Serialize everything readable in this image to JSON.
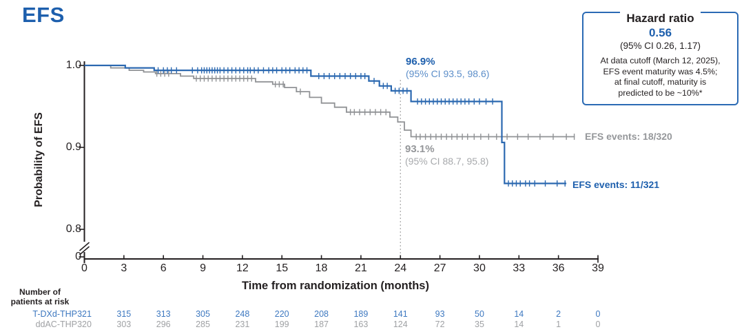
{
  "title": "EFS",
  "colors": {
    "title_blue": "#1d5fad",
    "curve_blue": "#2b68b0",
    "ci_text_blue": "#5c8ec9",
    "curve_gray": "#909295",
    "gray_bold_text": "#95979a",
    "ci_text_gray": "#a7a9ac",
    "risk_blue": "#3d78c0",
    "risk_gray": "#9fa1a4",
    "axis_black": "#231f20",
    "dotted_line": "#a6a6a6",
    "box_border_blue": "#2a6ab4"
  },
  "hazard_box": {
    "title": "Hazard ratio",
    "value": "0.56",
    "ci": "(95% CI 0.26, 1.17)",
    "note_lines": [
      "At data cutoff (March 12, 2025),",
      "EFS event maturity was 4.5%;",
      "at final cutoff, maturity is",
      "predicted to be ~10%*"
    ]
  },
  "annotations": {
    "tdxd_landmark_pct": "96.9%",
    "tdxd_landmark_ci": "(95% CI 93.5, 98.6)",
    "ddac_landmark_pct": "93.1%",
    "ddac_landmark_ci": "(95% CI 88.7, 95.8)",
    "tdxd_events": "EFS events: 11/321",
    "ddac_events": "EFS events: 18/320"
  },
  "axes": {
    "x": {
      "label": "Time from randomization (months)",
      "min": 0,
      "max": 39,
      "ticks": [
        0,
        3,
        6,
        9,
        12,
        15,
        18,
        21,
        24,
        27,
        30,
        33,
        36,
        39
      ]
    },
    "y": {
      "label": "Probability of EFS",
      "tick_labels": [
        "1.0",
        "0.9",
        "0.8",
        "0"
      ],
      "axis_break": true
    }
  },
  "chart_data": {
    "type": "line",
    "subtype": "kaplan-meier-step",
    "title": "EFS",
    "xlabel": "Time from randomization (months)",
    "ylabel": "Probability of EFS",
    "xlim": [
      0,
      39
    ],
    "ylim_displayed": [
      0.8,
      1.0
    ],
    "y_axis_break_to_zero": true,
    "landmark_month": 24,
    "grid": false,
    "series": [
      {
        "name": "T-DXd-THP",
        "color": "#2b68b0",
        "events": "11/321",
        "landmark_24mo": "96.9% (95% CI 93.5, 98.6)",
        "end_month": 36.6,
        "steps": [
          [
            0,
            1.0
          ],
          [
            3.1,
            0.997
          ],
          [
            5.3,
            0.994
          ],
          [
            17.2,
            0.987
          ],
          [
            21.6,
            0.981
          ],
          [
            22.4,
            0.975
          ],
          [
            23.3,
            0.969
          ],
          [
            24.8,
            0.956
          ],
          [
            31.7,
            0.906
          ],
          [
            31.9,
            0.856
          ]
        ],
        "censor_months": [
          5.6,
          6.0,
          6.3,
          6.6,
          7.0,
          8.2,
          8.6,
          8.9,
          9.1,
          9.3,
          9.5,
          9.7,
          9.9,
          10.1,
          10.3,
          10.6,
          10.9,
          11.2,
          11.5,
          11.8,
          12.1,
          12.4,
          12.6,
          12.9,
          13.2,
          13.6,
          14.0,
          14.3,
          14.6,
          15.0,
          15.3,
          15.6,
          16.0,
          16.3,
          16.6,
          16.9,
          17.8,
          18.2,
          18.6,
          19.0,
          19.4,
          19.8,
          20.2,
          20.6,
          21.0,
          21.3,
          22.0,
          22.7,
          23.0,
          23.6,
          23.9,
          24.2,
          24.5,
          25.3,
          25.6,
          25.9,
          26.2,
          26.5,
          26.8,
          27.1,
          27.4,
          27.7,
          28.0,
          28.3,
          28.6,
          28.9,
          29.2,
          29.6,
          30.0,
          30.5,
          31.0,
          32.2,
          32.5,
          32.8,
          33.1,
          33.5,
          33.8,
          34.2,
          35.0,
          35.9,
          36.5
        ]
      },
      {
        "name": "ddAC-THP",
        "color": "#909295",
        "events": "18/320",
        "landmark_24mo": "93.1% (95% CI 88.7, 95.8)",
        "end_month": 37.25,
        "steps": [
          [
            0,
            1.0
          ],
          [
            2.0,
            0.997
          ],
          [
            3.4,
            0.994
          ],
          [
            4.5,
            0.992
          ],
          [
            5.4,
            0.99
          ],
          [
            7.3,
            0.987
          ],
          [
            8.3,
            0.984
          ],
          [
            13.0,
            0.98
          ],
          [
            14.3,
            0.977
          ],
          [
            15.2,
            0.973
          ],
          [
            16.1,
            0.968
          ],
          [
            17.1,
            0.961
          ],
          [
            18.0,
            0.954
          ],
          [
            19.0,
            0.949
          ],
          [
            19.9,
            0.943
          ],
          [
            23.2,
            0.937
          ],
          [
            23.8,
            0.931
          ],
          [
            24.3,
            0.921
          ],
          [
            24.8,
            0.913
          ]
        ],
        "censor_months": [
          5.5,
          5.8,
          6.1,
          6.4,
          8.5,
          8.8,
          9.1,
          9.4,
          9.7,
          10.0,
          10.3,
          10.6,
          10.9,
          11.2,
          11.5,
          11.8,
          12.1,
          12.4,
          12.7,
          14.5,
          14.8,
          15.1,
          16.4,
          20.2,
          20.5,
          20.9,
          21.3,
          21.7,
          22.1,
          22.5,
          22.9,
          25.2,
          25.5,
          25.9,
          26.3,
          26.7,
          27.1,
          27.5,
          27.9,
          28.3,
          28.7,
          29.1,
          29.6,
          30.1,
          30.7,
          31.3,
          32.1,
          32.9,
          33.7,
          34.6,
          35.6,
          36.6,
          37.2
        ]
      }
    ]
  },
  "risk_table": {
    "header_lines": [
      "Number of",
      "patients at risk"
    ],
    "timepoints": [
      0,
      3,
      6,
      9,
      12,
      15,
      18,
      21,
      24,
      27,
      30,
      33,
      36,
      39
    ],
    "rows": [
      {
        "name": "T-DXd-THP",
        "values": [
          321,
          315,
          313,
          305,
          248,
          220,
          208,
          189,
          141,
          93,
          50,
          14,
          2,
          0
        ]
      },
      {
        "name": "ddAC-THP",
        "values": [
          320,
          303,
          296,
          285,
          231,
          199,
          187,
          163,
          124,
          72,
          35,
          14,
          1,
          0
        ]
      }
    ]
  }
}
